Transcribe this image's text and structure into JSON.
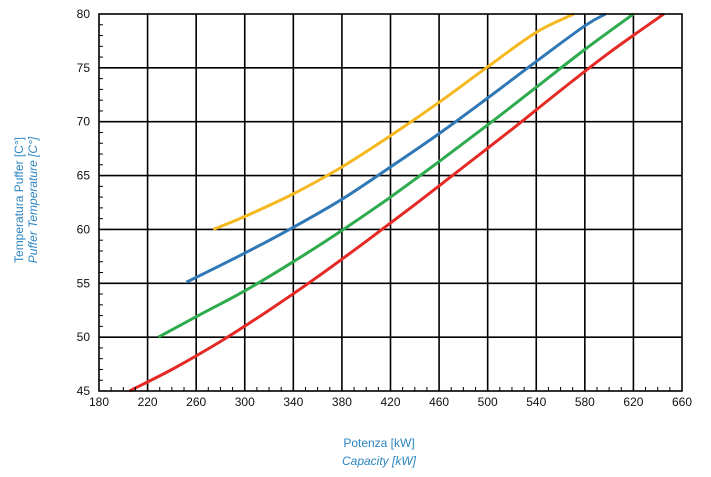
{
  "chart_data": {
    "type": "line",
    "xlabel": "Potenza [kW]",
    "xlabel_en": "Capacity [kW]",
    "ylabel": "Temperatura  Puffer [C°]",
    "ylabel_en": "Puffer Temperature [C°]",
    "xlim": [
      180,
      660
    ],
    "ylim": [
      45,
      80
    ],
    "x_ticks": [
      180,
      220,
      260,
      300,
      340,
      380,
      420,
      460,
      500,
      540,
      580,
      620,
      660
    ],
    "y_ticks": [
      45,
      50,
      55,
      60,
      65,
      70,
      75,
      80
    ],
    "grid": true,
    "title_color": "#2e86c1",
    "series": [
      {
        "color": "#f5b820",
        "points": [
          [
            274,
            60
          ],
          [
            300,
            61.2
          ],
          [
            340,
            63.3
          ],
          [
            380,
            65.8
          ],
          [
            420,
            68.7
          ],
          [
            460,
            71.8
          ],
          [
            500,
            75.1
          ],
          [
            540,
            78.3
          ],
          [
            571,
            80
          ]
        ]
      },
      {
        "color": "#2f78b5",
        "points": [
          [
            252,
            55.1
          ],
          [
            300,
            57.8
          ],
          [
            340,
            60.2
          ],
          [
            380,
            62.8
          ],
          [
            420,
            65.8
          ],
          [
            460,
            68.9
          ],
          [
            500,
            72.2
          ],
          [
            540,
            75.6
          ],
          [
            580,
            78.9
          ],
          [
            597,
            80
          ]
        ]
      },
      {
        "color": "#2eab4d",
        "points": [
          [
            229,
            50
          ],
          [
            260,
            51.9
          ],
          [
            300,
            54.3
          ],
          [
            340,
            57
          ],
          [
            380,
            59.9
          ],
          [
            420,
            63
          ],
          [
            460,
            66.3
          ],
          [
            500,
            69.7
          ],
          [
            540,
            73.2
          ],
          [
            580,
            76.7
          ],
          [
            620,
            80
          ]
        ]
      },
      {
        "color": "#e52a25",
        "points": [
          [
            205,
            45
          ],
          [
            240,
            47
          ],
          [
            280,
            49.6
          ],
          [
            320,
            52.5
          ],
          [
            360,
            55.6
          ],
          [
            400,
            58.9
          ],
          [
            440,
            62.3
          ],
          [
            480,
            65.8
          ],
          [
            520,
            69.3
          ],
          [
            560,
            72.9
          ],
          [
            600,
            76.4
          ],
          [
            645,
            80
          ]
        ]
      }
    ]
  }
}
